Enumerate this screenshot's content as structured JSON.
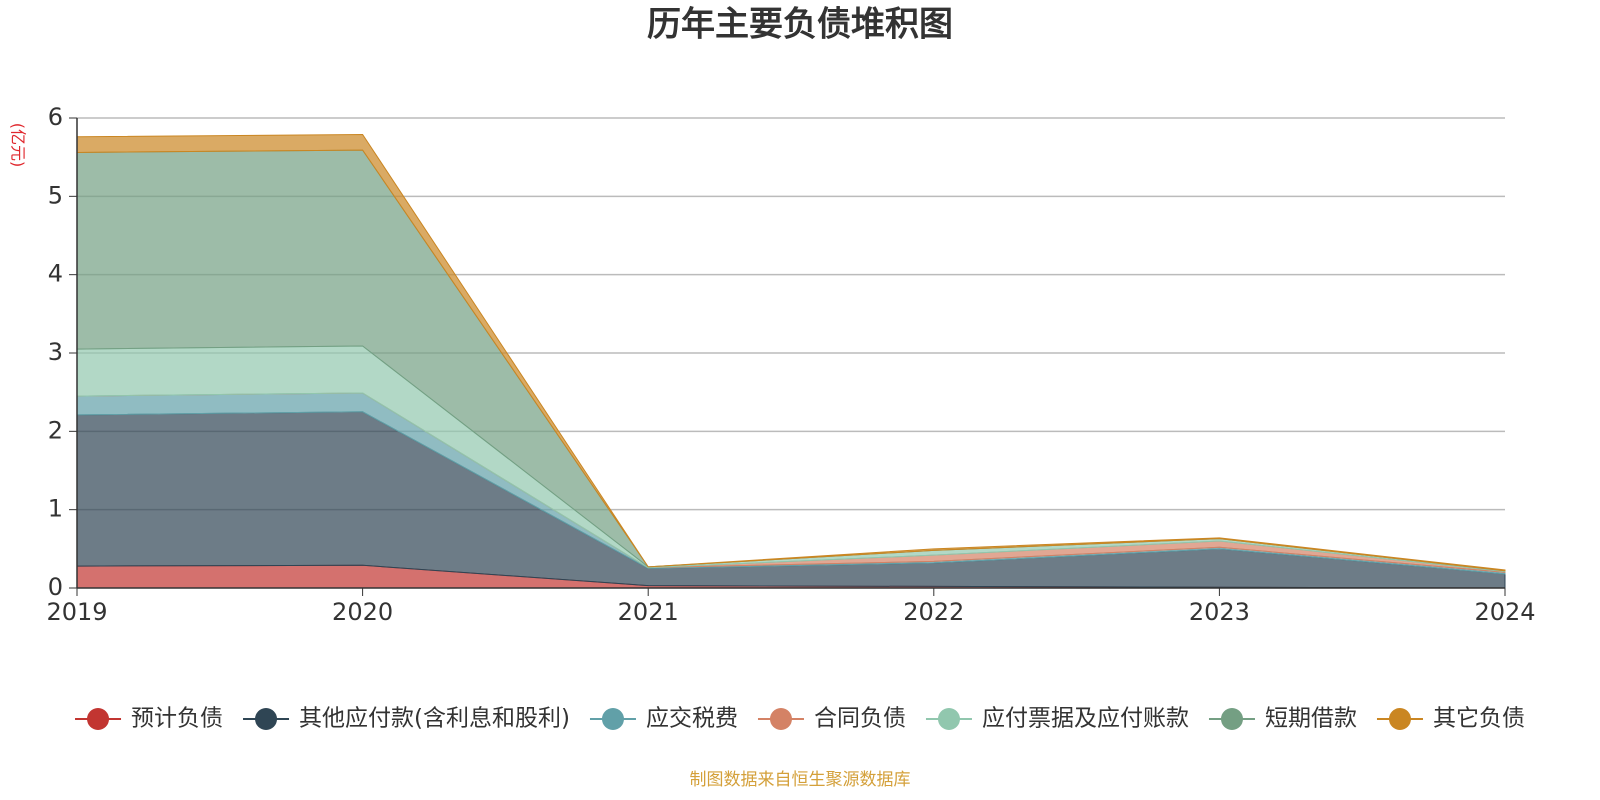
{
  "chart_data": {
    "type": "stacked_area",
    "title": "历年主要负债堆积图",
    "y_unit": "(亿元)",
    "source": "制图数据来自恒生聚源数据库",
    "categories": [
      "2019",
      "2020",
      "2021",
      "2022",
      "2023",
      "2024"
    ],
    "series": [
      {
        "name": "预计负债",
        "color": "#c23531",
        "values": [
          0.28,
          0.29,
          0.03,
          0.02,
          0.01,
          0
        ]
      },
      {
        "name": "其他应付款(含利息和股利)",
        "color": "#2f4554",
        "values": [
          1.93,
          1.96,
          0.22,
          0.3,
          0.49,
          0.18
        ]
      },
      {
        "name": "应交税费",
        "color": "#61a0a8",
        "values": [
          0.24,
          0.24,
          0.01,
          0.02,
          0.02,
          0.02
        ]
      },
      {
        "name": "合同负债",
        "color": "#d48265",
        "values": [
          0,
          0,
          0,
          0.08,
          0.08,
          0.01
        ]
      },
      {
        "name": "应付票据及应付账款",
        "color": "#91c7ae",
        "values": [
          0.6,
          0.6,
          0.01,
          0.06,
          0.03,
          0.01
        ]
      },
      {
        "name": "短期借款",
        "color": "#749f83",
        "values": [
          2.51,
          2.5,
          0,
          0,
          0,
          0
        ]
      },
      {
        "name": "其它负债",
        "color": "#ca8622",
        "values": [
          0.2,
          0.2,
          0,
          0.02,
          0.01,
          0.01
        ]
      }
    ],
    "ylim": [
      0,
      6
    ],
    "yticks": [
      0,
      1,
      2,
      3,
      4,
      5,
      6
    ],
    "grid": true
  }
}
